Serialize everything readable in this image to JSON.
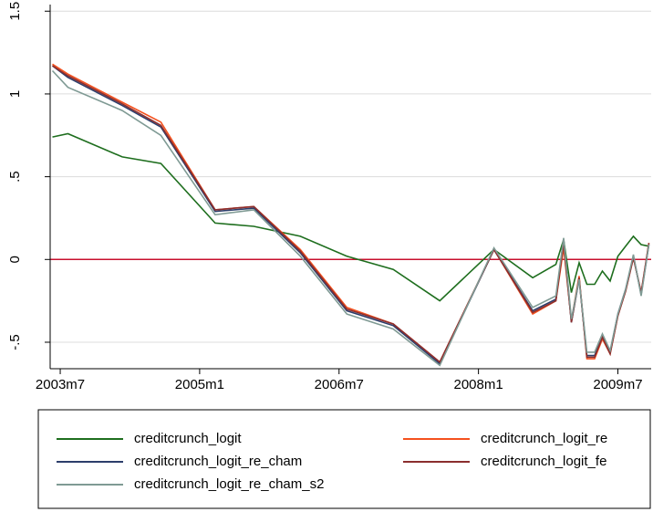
{
  "chart_data": {
    "type": "line",
    "x": [
      "2003m6",
      "2003m8",
      "2004m3",
      "2004m8",
      "2005m3",
      "2005m8",
      "2006m2",
      "2006m8",
      "2007m2",
      "2007m8",
      "2008m3",
      "2008m8",
      "2008m11",
      "2008m12",
      "2009m1",
      "2009m2",
      "2009m3",
      "2009m4",
      "2009m5",
      "2009m6",
      "2009m7",
      "2009m8",
      "2009m9",
      "2009m10",
      "2009m11"
    ],
    "xlim": [
      "2003m6",
      "2009m11"
    ],
    "xticks": [
      "2003m7",
      "2005m1",
      "2006m7",
      "2008m1",
      "2009m7"
    ],
    "ylim": [
      -0.66,
      1.54
    ],
    "yticks": [
      {
        "value": -0.5,
        "label": "-.5"
      },
      0,
      {
        "value": 0.5,
        "label": ".5"
      },
      1,
      1.5
    ],
    "grid": true,
    "refline": {
      "value": 0,
      "color": "#c8102e"
    },
    "series": [
      {
        "name": "creditcrunch_logit",
        "color": "#1e6e1e",
        "values": [
          0.74,
          0.76,
          0.62,
          0.58,
          0.22,
          0.2,
          0.14,
          0.02,
          -0.06,
          -0.25,
          0.06,
          -0.11,
          -0.03,
          0.12,
          -0.2,
          -0.02,
          -0.15,
          -0.15,
          -0.07,
          -0.13,
          0.02,
          0.08,
          0.14,
          0.09,
          0.08
        ]
      },
      {
        "name": "creditcrunch_logit_re",
        "color": "#f4511e",
        "values": [
          1.18,
          1.12,
          0.95,
          0.83,
          0.3,
          0.32,
          0.06,
          -0.29,
          -0.39,
          -0.62,
          0.06,
          -0.33,
          -0.25,
          0.07,
          -0.37,
          -0.1,
          -0.6,
          -0.6,
          -0.48,
          -0.57,
          -0.34,
          -0.19,
          0.01,
          -0.2,
          0.1
        ]
      },
      {
        "name": "creditcrunch_logit_re_cham",
        "color": "#2c3e6b",
        "values": [
          1.17,
          1.1,
          0.93,
          0.8,
          0.29,
          0.31,
          0.04,
          -0.31,
          -0.4,
          -0.63,
          0.06,
          -0.31,
          -0.24,
          0.12,
          -0.38,
          -0.12,
          -0.58,
          -0.58,
          -0.46,
          -0.56,
          -0.33,
          -0.18,
          0.02,
          -0.21,
          0.09
        ]
      },
      {
        "name": "creditcrunch_logit_fe",
        "color": "#8b2e2e",
        "values": [
          1.17,
          1.11,
          0.94,
          0.81,
          0.3,
          0.32,
          0.05,
          -0.3,
          -0.39,
          -0.62,
          0.06,
          -0.32,
          -0.25,
          0.1,
          -0.38,
          -0.11,
          -0.59,
          -0.59,
          -0.47,
          -0.57,
          -0.34,
          -0.19,
          0.01,
          -0.2,
          0.1
        ]
      },
      {
        "name": "creditcrunch_logit_re_cham_s2",
        "color": "#7f9a94",
        "values": [
          1.14,
          1.04,
          0.9,
          0.75,
          0.27,
          0.3,
          0.02,
          -0.33,
          -0.42,
          -0.64,
          0.07,
          -0.29,
          -0.22,
          0.13,
          -0.36,
          -0.12,
          -0.56,
          -0.56,
          -0.45,
          -0.55,
          -0.33,
          -0.18,
          0.03,
          -0.22,
          0.09
        ]
      }
    ]
  }
}
